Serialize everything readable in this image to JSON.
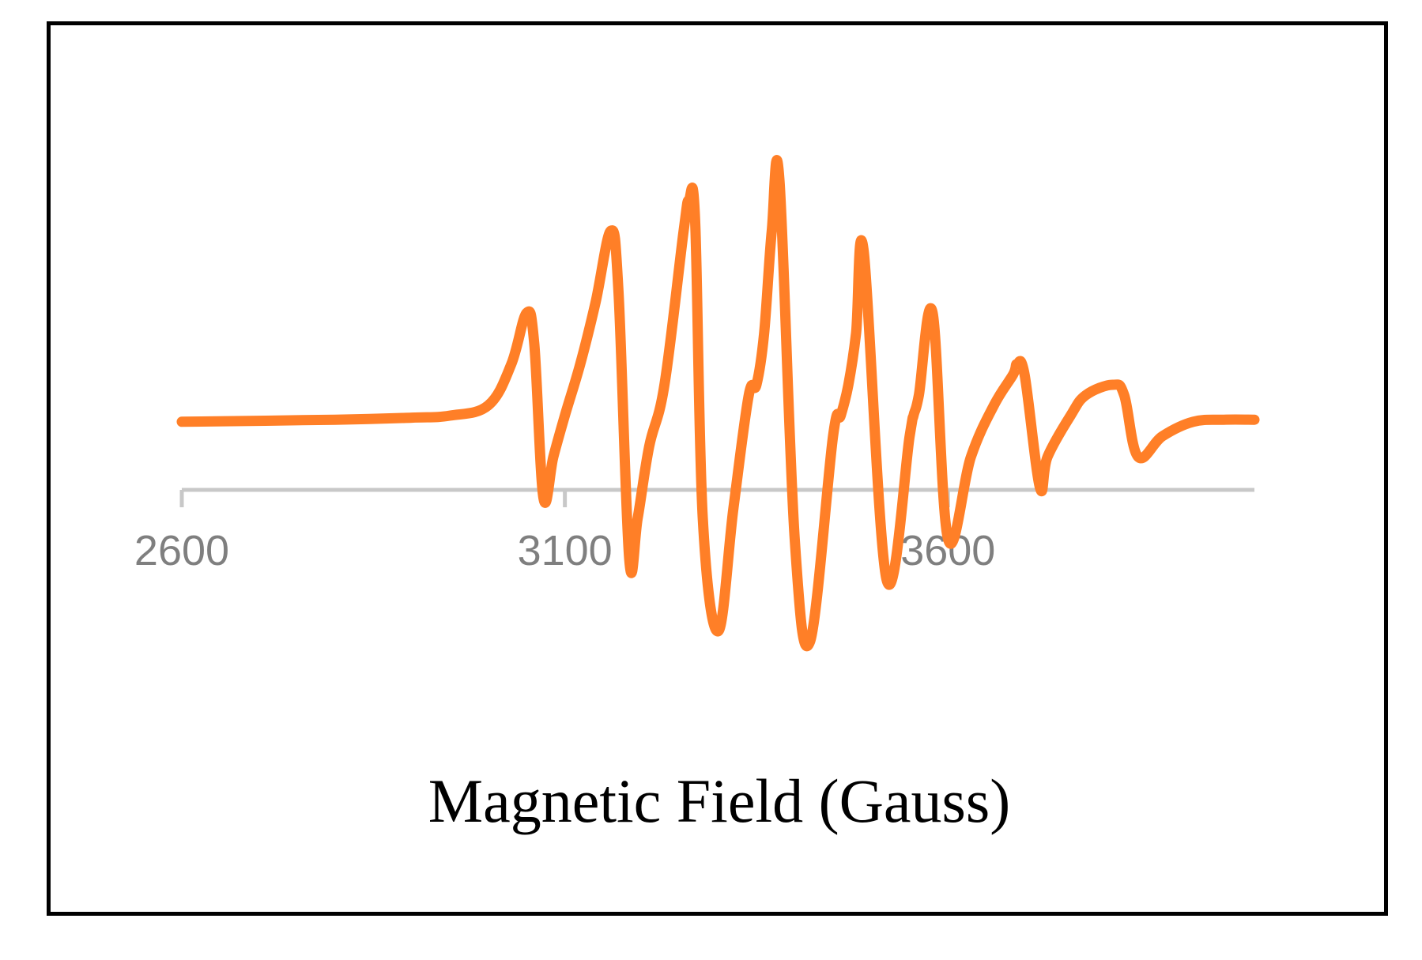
{
  "chart_data": {
    "type": "line",
    "title": "",
    "xlabel": "Magnetic Field (Gauss)",
    "ylabel": "",
    "xlim": [
      2600,
      4000
    ],
    "x_ticks": [
      2600,
      3100,
      3600
    ],
    "x_tick_labels": [
      "2600",
      "3100",
      "3600"
    ],
    "y_axis_visible": false,
    "grid": false,
    "legend": "none",
    "series": [
      {
        "color": "#ff7f27",
        "x": [
          2600,
          2800,
          2900,
          2950,
          3000,
          3030,
          3050,
          3060,
          3072,
          3085,
          3100,
          3120,
          3140,
          3160,
          3170,
          3184,
          3195,
          3210,
          3230,
          3255,
          3262,
          3270,
          3280,
          3300,
          3320,
          3340,
          3350,
          3360,
          3370,
          3380,
          3400,
          3420,
          3450,
          3460,
          3470,
          3480,
          3490,
          3520,
          3550,
          3555,
          3562,
          3580,
          3600,
          3630,
          3660,
          3685,
          3690,
          3700,
          3720,
          3730,
          3760,
          3780,
          3815,
          3830,
          3848,
          3880,
          3920,
          3960,
          4000
        ],
        "y": [
          -3,
          -2,
          -1,
          0,
          5,
          25,
          50,
          35,
          -40,
          -20,
          0,
          25,
          55,
          90,
          60,
          -70,
          -50,
          -15,
          15,
          90,
          105,
          95,
          -50,
          -105,
          -45,
          10,
          15,
          40,
          90,
          115,
          -60,
          -110,
          -10,
          0,
          15,
          40,
          80,
          -80,
          -10,
          0,
          10,
          50,
          -60,
          -20,
          5,
          20,
          25,
          20,
          -35,
          -20,
          0,
          10,
          15,
          10,
          -20,
          -10,
          -3,
          -2,
          -2
        ]
      }
    ]
  }
}
